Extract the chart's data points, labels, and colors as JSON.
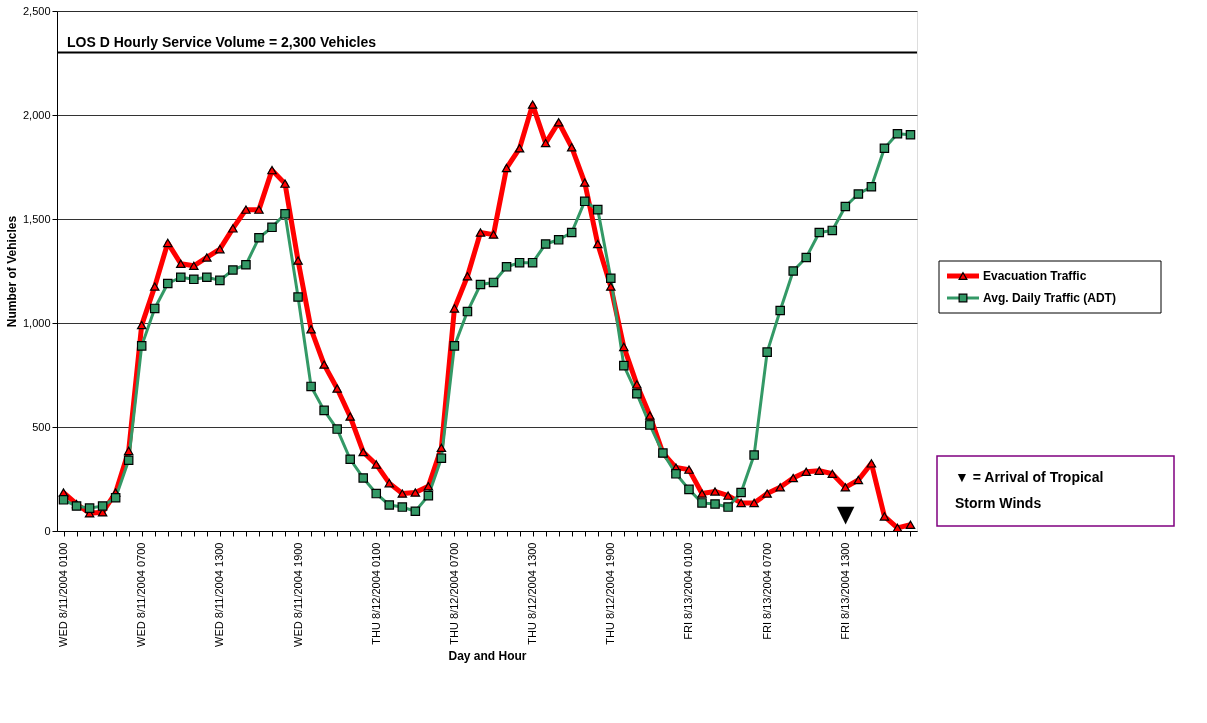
{
  "chart_data": {
    "type": "line",
    "xlabel": "Day and Hour",
    "ylabel": "Number of Vehicles",
    "categories": [
      "WED 8/11/2004 0100",
      null,
      null,
      null,
      null,
      null,
      "WED 8/11/2004 0700",
      null,
      null,
      null,
      null,
      null,
      "WED 8/11/2004 1300",
      null,
      null,
      null,
      null,
      null,
      "WED 8/11/2004 1900",
      null,
      null,
      null,
      null,
      null,
      "THU 8/12/2004 0100",
      null,
      null,
      null,
      null,
      null,
      "THU 8/12/2004 0700",
      null,
      null,
      null,
      null,
      null,
      "THU 8/12/2004 1300",
      null,
      null,
      null,
      null,
      null,
      "THU 8/12/2004 1900",
      null,
      null,
      null,
      null,
      null,
      "FRI 8/13/2004 0100",
      null,
      null,
      null,
      null,
      null,
      "FRI 8/13/2004 0700",
      null,
      null,
      null,
      null,
      null,
      "FRI 8/13/2004 1300",
      null,
      null,
      null,
      null,
      null
    ],
    "series": [
      {
        "name": "Evacuation Traffic",
        "color": "#ff0000",
        "marker": "triangle",
        "values": [
          185,
          130,
          85,
          90,
          185,
          385,
          990,
          1175,
          1385,
          1285,
          1275,
          1315,
          1355,
          1455,
          1545,
          1545,
          1735,
          1670,
          1300,
          970,
          800,
          685,
          550,
          380,
          320,
          230,
          180,
          185,
          215,
          400,
          1070,
          1225,
          1435,
          1425,
          1745,
          1840,
          2050,
          1865,
          1965,
          1845,
          1675,
          1380,
          1175,
          885,
          705,
          555,
          375,
          305,
          295,
          180,
          190,
          170,
          135,
          135,
          180,
          210,
          255,
          285,
          290,
          275,
          210,
          245,
          325,
          70,
          15,
          30
        ]
      },
      {
        "name": "Avg. Daily Traffic (ADT)",
        "color": "#339966",
        "marker": "square",
        "values": [
          150,
          120,
          110,
          120,
          160,
          340,
          890,
          1070,
          1190,
          1220,
          1210,
          1220,
          1205,
          1255,
          1280,
          1410,
          1460,
          1525,
          1125,
          695,
          580,
          490,
          345,
          255,
          180,
          125,
          115,
          95,
          170,
          350,
          890,
          1055,
          1185,
          1195,
          1270,
          1290,
          1290,
          1380,
          1400,
          1435,
          1585,
          1545,
          1215,
          795,
          660,
          510,
          375,
          275,
          200,
          135,
          130,
          115,
          185,
          365,
          860,
          1060,
          1250,
          1315,
          1435,
          1445,
          1560,
          1620,
          1655,
          1840,
          1910,
          1905
        ]
      }
    ],
    "ylim": [
      0,
      2500
    ],
    "yticks": [
      {
        "value": 0,
        "label": "0"
      },
      {
        "value": 500,
        "label": "500"
      },
      {
        "value": 1000,
        "label": "1,000"
      },
      {
        "value": 1500,
        "label": "1,500"
      },
      {
        "value": 2000,
        "label": "2,000"
      },
      {
        "value": 2500,
        "label": "2,500"
      }
    ],
    "grid": "y",
    "legend": "right",
    "ref_lines": [
      {
        "axis": "y",
        "value": 2300,
        "label": "LOS D Hourly Service Volume = 2,300 Vehicles",
        "color": "#000000"
      }
    ],
    "annotations": [
      "▼",
      "▼ = Arrival of  Tropical Storm Winds"
    ]
  }
}
